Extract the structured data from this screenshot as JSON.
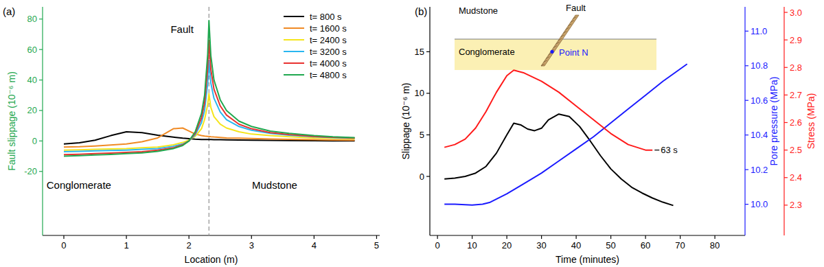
{
  "chart_data": [
    {
      "type": "line",
      "panel_label": "(a)",
      "x_label": "Location (m)",
      "y_label": "Fault slippage (10⁻⁶ m)",
      "xlim": [
        -0.34,
        5.05
      ],
      "ylim": [
        -62,
        88
      ],
      "xticks": [
        0,
        1,
        2,
        3,
        4,
        5
      ],
      "yticks": [
        -20,
        0,
        20,
        40,
        60,
        80
      ],
      "legend": "upper right",
      "fault_x": 2.32,
      "annotations": [
        {
          "text": "Fault",
          "x": 1.89,
          "y": 73
        },
        {
          "text": "Conglomerate",
          "x": 0.24,
          "y": -29
        },
        {
          "text": "Mudstone",
          "x": 3.37,
          "y": -29
        }
      ],
      "x": [
        0,
        0.25,
        0.5,
        0.75,
        1,
        1.25,
        1.5,
        1.75,
        1.9,
        2,
        2.1,
        2.2,
        2.25,
        2.3,
        2.32,
        2.35,
        2.4,
        2.5,
        2.6,
        2.8,
        3,
        3.3,
        3.6,
        4,
        4.3,
        4.65
      ],
      "series": [
        {
          "name": "t= 800 s",
          "color": "#000000",
          "values": [
            -2,
            -1.2,
            0.5,
            3.5,
            6,
            5.5,
            3.8,
            2.5,
            1.8,
            1.5,
            1.2,
            1,
            1,
            0.9,
            0.9,
            0.9,
            0.8,
            0.8,
            0.7,
            0.6,
            0.5,
            0.4,
            0.3,
            0.2,
            0.1,
            0
          ]
        },
        {
          "name": "t= 1600 s",
          "color": "#f08a24",
          "values": [
            -4,
            -3.8,
            -3.3,
            -2.7,
            -2,
            -0.5,
            2,
            8,
            8.5,
            6.5,
            4.5,
            3.5,
            3.2,
            3,
            3,
            2.8,
            2.6,
            2.3,
            2,
            1.8,
            1.6,
            1.3,
            1.1,
            0.8,
            0.6,
            0.5
          ]
        },
        {
          "name": "t= 2400 s",
          "color": "#f5e51b",
          "values": [
            -6,
            -5.8,
            -5.5,
            -5.2,
            -5,
            -4.5,
            -4,
            -2.5,
            -1,
            0.5,
            3,
            8,
            14,
            24,
            31,
            22,
            16,
            11,
            8.5,
            6,
            4.5,
            3.5,
            2.8,
            2,
            1.7,
            1.5
          ]
        },
        {
          "name": "t= 3200 s",
          "color": "#29b6f0",
          "values": [
            -7,
            -6.8,
            -6.5,
            -6.3,
            -6,
            -5.5,
            -5,
            -3.5,
            -2,
            0,
            4,
            12,
            20,
            38,
            53,
            38,
            28,
            19,
            14,
            9.5,
            7,
            5,
            3.8,
            2.8,
            2.2,
            1.8
          ]
        },
        {
          "name": "t= 4000 s",
          "color": "#e8312f",
          "values": [
            -9,
            -8.7,
            -8.3,
            -8,
            -7.5,
            -7,
            -6,
            -4.5,
            -2.5,
            0,
            5,
            15,
            25,
            48,
            66,
            47,
            34,
            23,
            17,
            11,
            8,
            5.5,
            4.2,
            3,
            2.4,
            2
          ]
        },
        {
          "name": "t= 4800 s",
          "color": "#1fa84f",
          "values": [
            -10,
            -9.6,
            -9.2,
            -8.8,
            -8.3,
            -7.8,
            -6.8,
            -5,
            -3,
            0,
            6,
            18,
            30,
            57,
            79,
            56,
            40,
            27,
            20,
            13,
            9.5,
            6.5,
            5,
            3.5,
            2.7,
            2.2
          ]
        }
      ]
    },
    {
      "type": "line",
      "panel_label": "(b)",
      "x_label": "Time (minutes)",
      "y_label": "Slippage (10⁻⁶ m)",
      "y2_label": "Pore pressure (MPa)",
      "y3_label": "Stress (MPa)",
      "xlim": [
        -2.2,
        88.7
      ],
      "ylim": [
        -7.1,
        20.4
      ],
      "y2lim": [
        9.82,
        11.14
      ],
      "y3lim": [
        2.19,
        3.02
      ],
      "xticks": [
        0,
        10,
        20,
        30,
        40,
        50,
        60,
        70,
        80
      ],
      "yticks": [
        0,
        5,
        10,
        15
      ],
      "y2ticks": [
        {
          "value": 10,
          "label": "10.0"
        },
        10.2,
        10.4,
        10.6,
        10.8,
        {
          "value": 11,
          "label": "11.0"
        }
      ],
      "y3ticks": [
        2.3,
        2.4,
        2.5,
        2.6,
        2.7,
        2.8,
        2.9,
        {
          "value": 3,
          "label": "3.0"
        }
      ],
      "annotations": [
        {
          "text": "63 s",
          "x": 63,
          "y": 2.5,
          "axis": "y3"
        }
      ],
      "inset_labels": {
        "upper_layer": "Mudstone",
        "lower_layer": "Conglomerate",
        "fault": "Fault",
        "point": "Point N"
      },
      "series": [
        {
          "color": "#000000",
          "x": [
            2,
            5,
            8,
            11,
            14,
            17,
            20,
            22,
            24,
            26,
            28,
            30,
            32,
            35,
            38,
            41,
            44,
            47,
            50,
            53,
            56,
            59,
            62,
            65,
            68
          ],
          "values": [
            -0.3,
            -0.2,
            0,
            0.4,
            1.2,
            2.8,
            5,
            6.4,
            6.2,
            5.7,
            5.5,
            5.8,
            6.8,
            7.5,
            7.2,
            6,
            4.3,
            2.5,
            0.9,
            -0.3,
            -1.3,
            -2,
            -2.6,
            -3.1,
            -3.5
          ]
        },
        {
          "color": "#1a1aff",
          "axis": "y2",
          "x": [
            2,
            5,
            10,
            13,
            15,
            20,
            25,
            30,
            35,
            40,
            45,
            50,
            55,
            60,
            65,
            72
          ],
          "values": [
            10,
            10,
            9.995,
            10,
            10.01,
            10.06,
            10.12,
            10.18,
            10.25,
            10.32,
            10.39,
            10.47,
            10.55,
            10.63,
            10.71,
            10.81
          ]
        },
        {
          "color": "#ff1a1a",
          "axis": "y3",
          "x": [
            2,
            5,
            8,
            11,
            14,
            17,
            20,
            22,
            25,
            30,
            35,
            40,
            45,
            50,
            55,
            60,
            62
          ],
          "values": [
            2.51,
            2.52,
            2.54,
            2.58,
            2.64,
            2.71,
            2.77,
            2.79,
            2.78,
            2.75,
            2.71,
            2.66,
            2.61,
            2.56,
            2.52,
            2.5,
            2.5
          ]
        }
      ]
    }
  ]
}
